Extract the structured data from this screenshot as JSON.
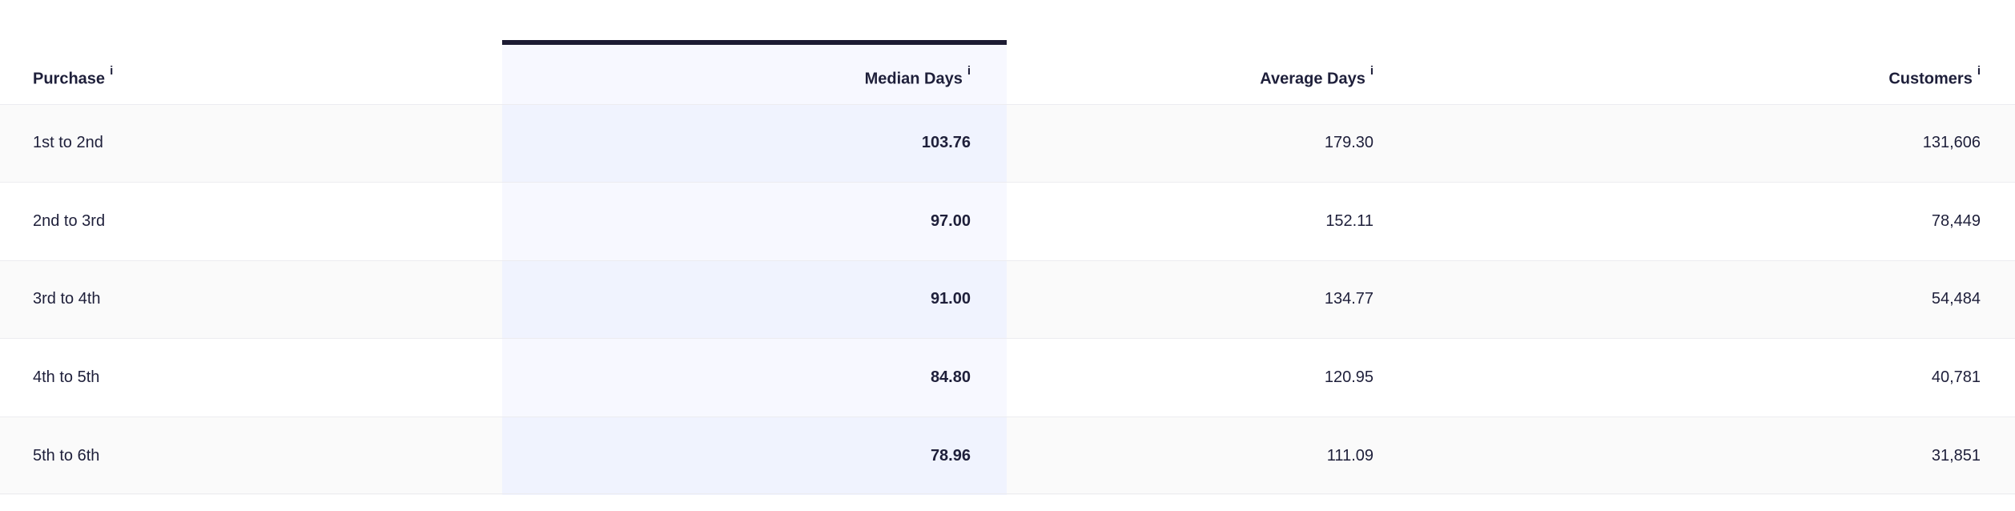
{
  "table": {
    "headers": {
      "purchase": "Purchase",
      "median_days": "Median Days",
      "average_days": "Average Days",
      "customers": "Customers",
      "info_glyph": "i"
    },
    "rows": [
      {
        "purchase": "1st to 2nd",
        "median_days": "103.76",
        "average_days": "179.30",
        "customers": "131,606"
      },
      {
        "purchase": "2nd to 3rd",
        "median_days": "97.00",
        "average_days": "152.11",
        "customers": "78,449"
      },
      {
        "purchase": "3rd to 4th",
        "median_days": "91.00",
        "average_days": "134.77",
        "customers": "54,484"
      },
      {
        "purchase": "4th to 5th",
        "median_days": "84.80",
        "average_days": "120.95",
        "customers": "40,781"
      },
      {
        "purchase": "5th to 6th",
        "median_days": "78.96",
        "average_days": "111.09",
        "customers": "31,851"
      }
    ],
    "colors": {
      "text": "#1e1f3a",
      "selected_column_bg": "#f7f8ff",
      "selected_column_border": "#1c1b33"
    }
  }
}
